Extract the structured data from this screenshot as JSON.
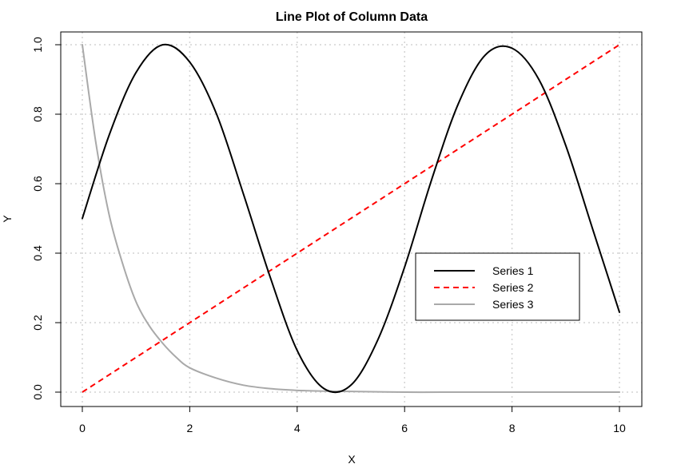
{
  "chart_data": {
    "type": "line",
    "title": "Line Plot of Column Data",
    "xlabel": "X",
    "ylabel": "Y",
    "xlim": [
      0,
      10
    ],
    "ylim": [
      0,
      1
    ],
    "x_ticks": [
      "0",
      "2",
      "4",
      "6",
      "8",
      "10"
    ],
    "y_ticks": [
      "0.0",
      "0.2",
      "0.4",
      "0.6",
      "0.8",
      "1.0"
    ],
    "grid": true,
    "legend_position": "center-right",
    "series": [
      {
        "name": "Series 1",
        "color": "#000000",
        "dash": "solid",
        "x": [
          0,
          0.5,
          1,
          1.5,
          2,
          2.5,
          3,
          3.5,
          4,
          4.5,
          5,
          5.5,
          6,
          6.5,
          7,
          7.5,
          8,
          8.5,
          9,
          9.5,
          10
        ],
        "y": [
          0.5,
          0.74,
          0.92,
          1.0,
          0.95,
          0.8,
          0.57,
          0.33,
          0.12,
          0.01,
          0.02,
          0.15,
          0.36,
          0.61,
          0.83,
          0.97,
          0.99,
          0.9,
          0.71,
          0.47,
          0.23
        ]
      },
      {
        "name": "Series 2",
        "color": "#ff0000",
        "dash": "dashed",
        "x": [
          0,
          10
        ],
        "y": [
          0.0,
          1.0
        ]
      },
      {
        "name": "Series 3",
        "color": "#a9a9a9",
        "dash": "solid",
        "x": [
          0,
          0.25,
          0.5,
          0.75,
          1,
          1.25,
          1.5,
          1.75,
          2,
          2.5,
          3,
          3.5,
          4,
          4.5,
          5,
          6,
          7,
          8,
          9,
          10
        ],
        "y": [
          1.0,
          0.72,
          0.51,
          0.37,
          0.26,
          0.19,
          0.14,
          0.1,
          0.07,
          0.04,
          0.02,
          0.01,
          0.005,
          0.003,
          0.002,
          0.0,
          0.0,
          0.0,
          0.0,
          0.0
        ]
      }
    ]
  }
}
